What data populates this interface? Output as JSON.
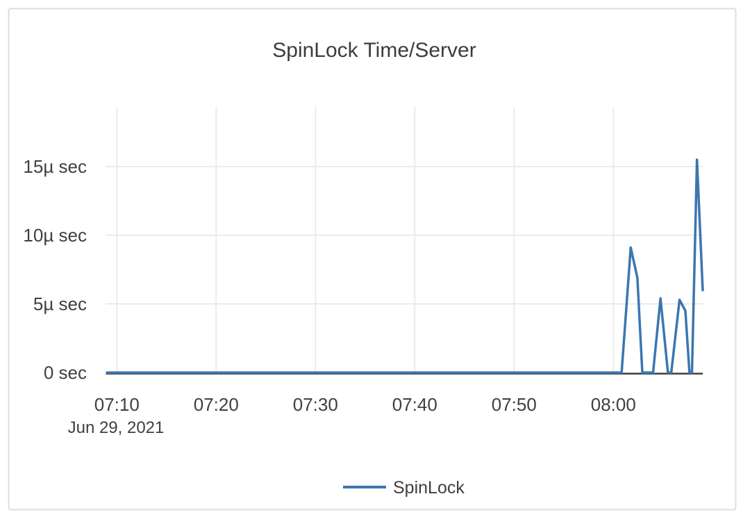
{
  "page": {
    "background_color": "#ffffff",
    "card_border_color": "#dedede"
  },
  "chart_data": {
    "type": "line",
    "title": "SpinLock Time/Server",
    "x_axis": {
      "start": "07:09:00",
      "end": "08:09:00",
      "ticks": [
        "07:10",
        "07:20",
        "07:30",
        "07:40",
        "07:50",
        "08:00"
      ],
      "date_label": "Jun 29, 2021",
      "grid": true
    },
    "y_axis": {
      "unit": "microseconds",
      "ticks": [
        {
          "value": 0,
          "label": "0 sec"
        },
        {
          "value": 5,
          "label": "5µ sec"
        },
        {
          "value": 10,
          "label": "10µ sec"
        },
        {
          "value": 15,
          "label": "15µ sec"
        }
      ],
      "max": 19.3,
      "grid": true
    },
    "legend": {
      "position": "bottom-center",
      "items": [
        {
          "label": "SpinLock",
          "color": "#3b76af"
        }
      ]
    },
    "series": [
      {
        "name": "SpinLock",
        "color": "#3b76af",
        "points": [
          [
            "07:09:00",
            0
          ],
          [
            "08:00:50",
            0
          ],
          [
            "08:01:45",
            9.1
          ],
          [
            "08:02:25",
            6.9
          ],
          [
            "08:02:55",
            0
          ],
          [
            "08:04:00",
            0
          ],
          [
            "08:04:45",
            5.4
          ],
          [
            "08:05:30",
            0
          ],
          [
            "08:05:50",
            0
          ],
          [
            "08:06:40",
            5.3
          ],
          [
            "08:07:15",
            4.5
          ],
          [
            "08:07:40",
            0
          ],
          [
            "08:07:55",
            0
          ],
          [
            "08:08:25",
            15.5
          ],
          [
            "08:09:00",
            6.0
          ]
        ]
      }
    ],
    "colors": {
      "line": "#3b76af",
      "grid": "#ebebeb",
      "axis": "#3e3e3e",
      "text": "#3f3f3f",
      "title": "#3d3d3d"
    }
  }
}
